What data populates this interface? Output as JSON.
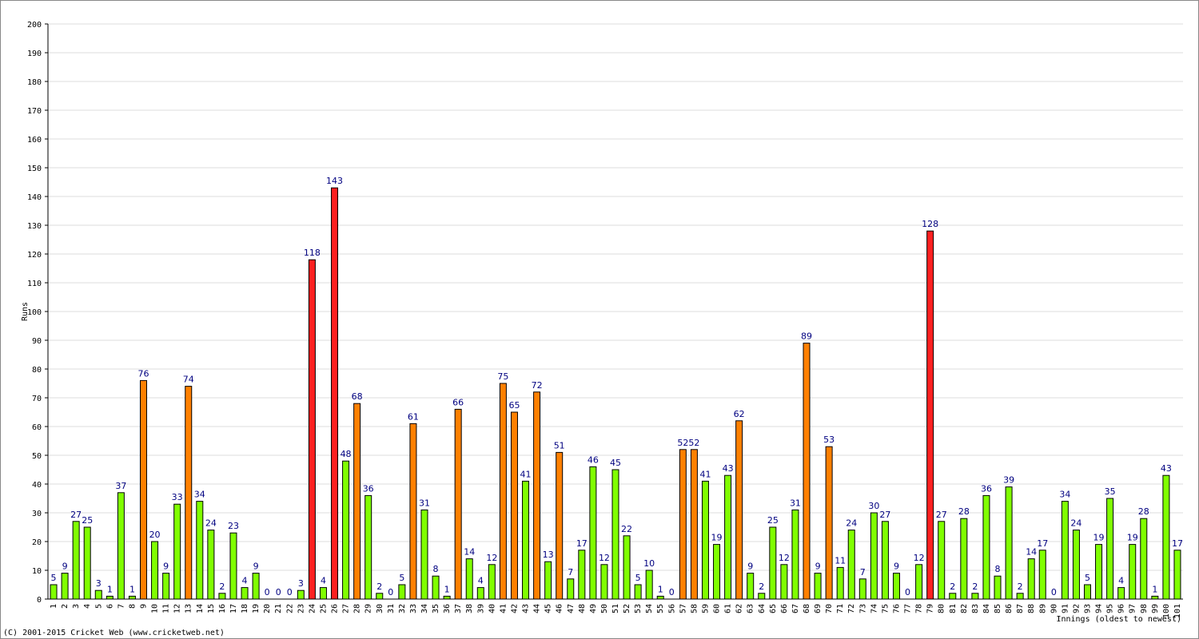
{
  "chart_data": {
    "type": "bar",
    "y_label": "Runs",
    "x_label": "Innings (oldest to newest)",
    "footer": "(C) 2001-2015 Cricket Web (www.cricketweb.net)",
    "categories": [
      "1",
      "2",
      "3",
      "4",
      "5",
      "6",
      "7",
      "8",
      "9",
      "10",
      "11",
      "12",
      "13",
      "14",
      "15",
      "16",
      "17",
      "18",
      "19",
      "20",
      "21",
      "22",
      "23",
      "24",
      "25",
      "26",
      "27",
      "28",
      "29",
      "30",
      "31",
      "32",
      "33",
      "34",
      "35",
      "36",
      "37",
      "38",
      "39",
      "40",
      "41",
      "42",
      "43",
      "44",
      "45",
      "46",
      "47",
      "48",
      "49",
      "50",
      "51",
      "52",
      "53",
      "54",
      "55",
      "56",
      "57",
      "58",
      "59",
      "60",
      "61",
      "62",
      "63",
      "64",
      "65",
      "66",
      "67",
      "68",
      "69",
      "70",
      "71",
      "72",
      "73",
      "74",
      "75",
      "76",
      "77",
      "78",
      "79",
      "80",
      "81",
      "82",
      "83",
      "84",
      "85",
      "86",
      "87",
      "88",
      "89",
      "90",
      "91",
      "92",
      "93",
      "94",
      "95",
      "96",
      "97",
      "98",
      "99",
      "100",
      "101"
    ],
    "values": [
      5,
      9,
      27,
      25,
      3,
      1,
      37,
      1,
      76,
      20,
      9,
      33,
      74,
      34,
      24,
      2,
      23,
      4,
      9,
      0,
      0,
      0,
      3,
      118,
      4,
      143,
      48,
      68,
      36,
      2,
      0,
      5,
      61,
      31,
      8,
      1,
      66,
      14,
      4,
      12,
      75,
      65,
      41,
      72,
      13,
      51,
      7,
      17,
      46,
      12,
      45,
      22,
      5,
      10,
      1,
      0,
      52,
      52,
      41,
      19,
      43,
      62,
      9,
      2,
      25,
      12,
      31,
      89,
      9,
      53,
      11,
      24,
      7,
      30,
      27,
      9,
      0,
      12,
      128,
      27,
      2,
      28,
      2,
      36,
      8,
      39,
      2,
      14,
      17,
      0,
      34,
      24,
      5,
      19,
      35,
      4,
      19,
      28,
      1,
      43,
      17
    ],
    "colors": [
      "#80ff00",
      "#80ff00",
      "#80ff00",
      "#80ff00",
      "#80ff00",
      "#80ff00",
      "#80ff00",
      "#80ff00",
      "#ff8000",
      "#80ff00",
      "#80ff00",
      "#80ff00",
      "#ff8000",
      "#80ff00",
      "#80ff00",
      "#80ff00",
      "#80ff00",
      "#80ff00",
      "#80ff00",
      "#80ff00",
      "#80ff00",
      "#80ff00",
      "#80ff00",
      "#ff2020",
      "#80ff00",
      "#ff2020",
      "#80ff00",
      "#ff8000",
      "#80ff00",
      "#80ff00",
      "#80ff00",
      "#80ff00",
      "#ff8000",
      "#80ff00",
      "#80ff00",
      "#80ff00",
      "#ff8000",
      "#80ff00",
      "#80ff00",
      "#80ff00",
      "#ff8000",
      "#ff8000",
      "#80ff00",
      "#ff8000",
      "#80ff00",
      "#ff8000",
      "#80ff00",
      "#80ff00",
      "#80ff00",
      "#80ff00",
      "#80ff00",
      "#80ff00",
      "#80ff00",
      "#80ff00",
      "#80ff00",
      "#80ff00",
      "#ff8000",
      "#ff8000",
      "#80ff00",
      "#80ff00",
      "#80ff00",
      "#ff8000",
      "#80ff00",
      "#80ff00",
      "#80ff00",
      "#80ff00",
      "#80ff00",
      "#ff8000",
      "#80ff00",
      "#ff8000",
      "#80ff00",
      "#80ff00",
      "#80ff00",
      "#80ff00",
      "#80ff00",
      "#80ff00",
      "#80ff00",
      "#80ff00",
      "#ff2020",
      "#80ff00",
      "#80ff00",
      "#80ff00",
      "#80ff00",
      "#80ff00",
      "#80ff00",
      "#80ff00",
      "#80ff00",
      "#80ff00",
      "#80ff00",
      "#80ff00",
      "#80ff00",
      "#80ff00",
      "#80ff00",
      "#80ff00",
      "#80ff00",
      "#80ff00",
      "#80ff00",
      "#80ff00",
      "#80ff00",
      "#80ff00",
      "#80ff00"
    ],
    "ylim": [
      0,
      200
    ],
    "yticks": [
      0,
      10,
      20,
      30,
      40,
      50,
      60,
      70,
      80,
      90,
      100,
      110,
      120,
      130,
      140,
      150,
      160,
      170,
      180,
      190,
      200
    ],
    "grid": true
  }
}
